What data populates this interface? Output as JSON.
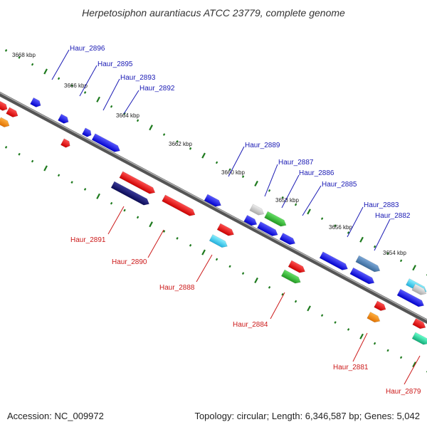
{
  "title": "Herpetosiphon aurantiacus ATCC 23779, complete genome",
  "footer": {
    "accession": "Accession: NC_009972",
    "stats": "Topology: circular; Length: 6,346,587 bp; Genes: 5,042"
  },
  "kbp_marks": [
    "3668 kbp",
    "3666 kbp",
    "3664 kbp",
    "3662 kbp",
    "3660 kbp",
    "3658 kbp",
    "3656 kbp",
    "3654 kbp"
  ],
  "forward_genes": [
    "Haur_2896",
    "Haur_2895",
    "Haur_2893",
    "Haur_2892",
    "Haur_2889",
    "Haur_2887",
    "Haur_2886",
    "Haur_2885",
    "Haur_2883",
    "Haur_2882"
  ],
  "reverse_genes": [
    "Haur_2891",
    "Haur_2890",
    "Haur_2888",
    "Haur_2884",
    "Haur_2881",
    "Haur_2879"
  ],
  "colors": {
    "backbone": "#6e6e6e",
    "forward_label": "#1a1ab4",
    "reverse_label": "#cc1a1a",
    "tick": "#1e7a1e"
  }
}
